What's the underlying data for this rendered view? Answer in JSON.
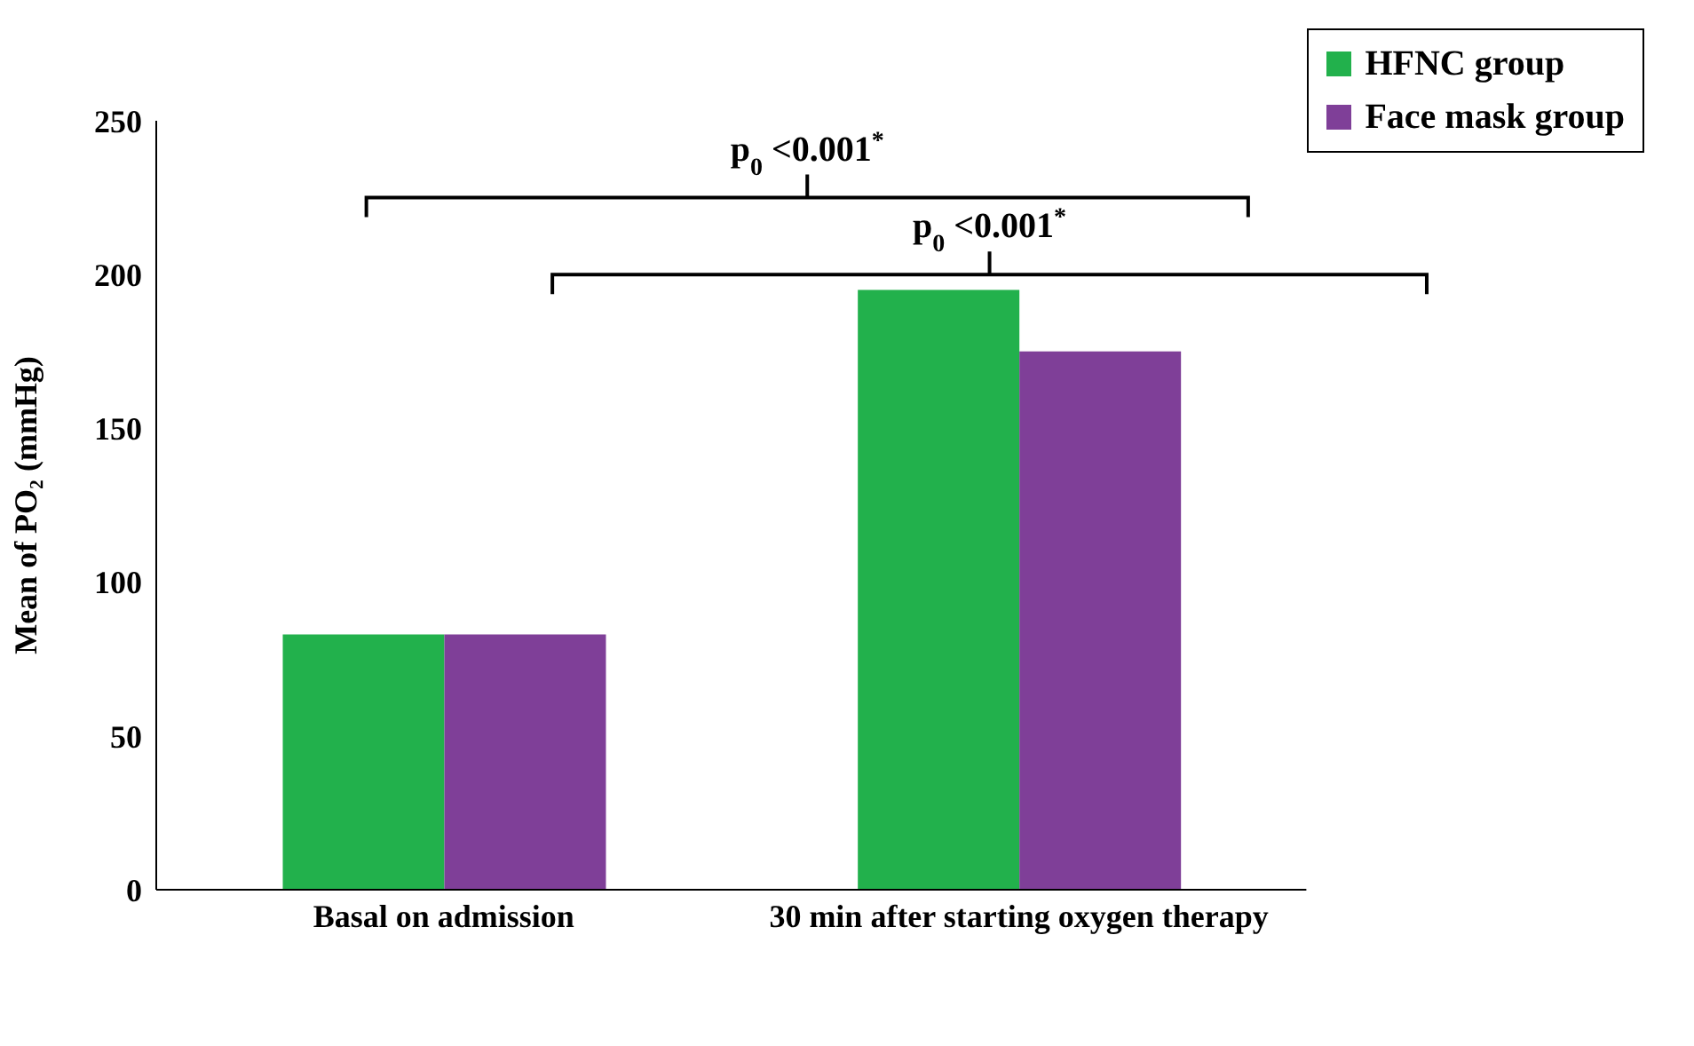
{
  "chart_data": {
    "type": "bar",
    "ylabel": "Mean of PO₂ (mmHg)",
    "categories": [
      "Basal on admission",
      "30 min after starting oxygen therapy"
    ],
    "series": [
      {
        "name": "HFNC group",
        "color": "#22b14c",
        "values": [
          83,
          195
        ]
      },
      {
        "name": "Face mask group",
        "color": "#7f3f98",
        "values": [
          83,
          175
        ]
      }
    ],
    "ylim": [
      0,
      250
    ],
    "yticks": [
      0,
      50,
      100,
      150,
      200,
      250
    ],
    "grid": false,
    "legend": "top right",
    "annotations": [
      "p$_{0}$ <0.001$^{*}$",
      "p$_{0}$ <0.001$^{*}$"
    ]
  }
}
